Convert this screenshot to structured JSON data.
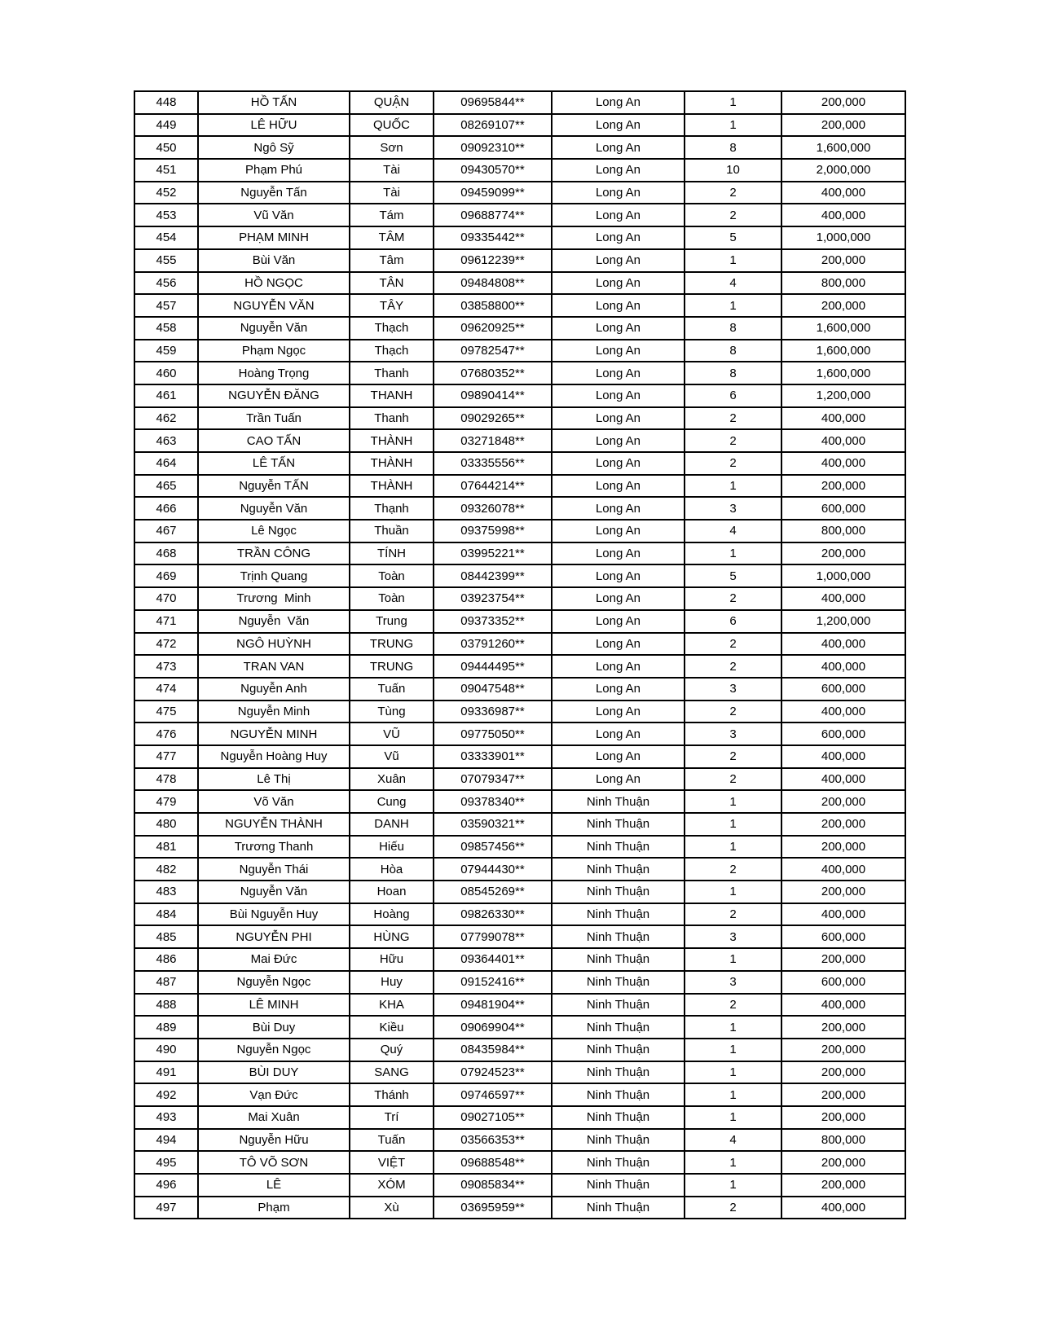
{
  "table": {
    "provinces_shown": [
      "Long An",
      "Ninh Thuận"
    ],
    "unit_amount": "200,000",
    "row_number_range": "448-497",
    "rows": [
      [
        "448",
        "HỒ TẤN",
        "QUẬN",
        "09695844**",
        "Long An",
        "1",
        "200,000"
      ],
      [
        "449",
        "LÊ HỮU",
        "QUỐC",
        "08269107**",
        "Long An",
        "1",
        "200,000"
      ],
      [
        "450",
        "Ngô Sỹ",
        "Sơn",
        "09092310**",
        "Long An",
        "8",
        "1,600,000"
      ],
      [
        "451",
        "Phạm Phú",
        "Tài",
        "09430570**",
        "Long An",
        "10",
        "2,000,000"
      ],
      [
        "452",
        "Nguyễn Tấn",
        "Tài",
        "09459099**",
        "Long An",
        "2",
        "400,000"
      ],
      [
        "453",
        "Vũ Văn",
        "Tám",
        "09688774**",
        "Long An",
        "2",
        "400,000"
      ],
      [
        "454",
        "PHẠM MINH",
        "TÂM",
        "09335442**",
        "Long An",
        "5",
        "1,000,000"
      ],
      [
        "455",
        "Bùi Văn",
        "Tâm",
        "09612239**",
        "Long An",
        "1",
        "200,000"
      ],
      [
        "456",
        "HỒ NGỌC",
        "TÂN",
        "09484808**",
        "Long An",
        "4",
        "800,000"
      ],
      [
        "457",
        "NGUYỄN VĂN",
        "TÂY",
        "03858800**",
        "Long An",
        "1",
        "200,000"
      ],
      [
        "458",
        "Nguyễn Văn",
        "Thạch",
        "09620925**",
        "Long An",
        "8",
        "1,600,000"
      ],
      [
        "459",
        "Phạm Ngọc",
        "Thạch",
        "09782547**",
        "Long An",
        "8",
        "1,600,000"
      ],
      [
        "460",
        "Hoàng Trọng",
        "Thanh",
        "07680352**",
        "Long An",
        "8",
        "1,600,000"
      ],
      [
        "461",
        "NGUYỄN ĐĂNG",
        "THANH",
        "09890414**",
        "Long An",
        "6",
        "1,200,000"
      ],
      [
        "462",
        "Trần Tuấn",
        "Thanh",
        "09029265**",
        "Long An",
        "2",
        "400,000"
      ],
      [
        "463",
        "CAO TẤN",
        "THÀNH",
        "03271848**",
        "Long An",
        "2",
        "400,000"
      ],
      [
        "464",
        "LÊ TẤN",
        "THÀNH",
        "03335556**",
        "Long An",
        "2",
        "400,000"
      ],
      [
        "465",
        "Nguyễn TẤN",
        "THÀNH",
        "07644214**",
        "Long An",
        "1",
        "200,000"
      ],
      [
        "466",
        "Nguyễn Văn",
        "Thạnh",
        "09326078**",
        "Long An",
        "3",
        "600,000"
      ],
      [
        "467",
        "Lê Ngọc",
        "Thuần",
        "09375998**",
        "Long An",
        "4",
        "800,000"
      ],
      [
        "468",
        "TRẦN CÔNG",
        "TÍNH",
        "03995221**",
        "Long An",
        "1",
        "200,000"
      ],
      [
        "469",
        "Trịnh Quang",
        "Toàn",
        "08442399**",
        "Long An",
        "5",
        "1,000,000"
      ],
      [
        "470",
        "Trương  Minh",
        "Toàn",
        "03923754**",
        "Long An",
        "2",
        "400,000"
      ],
      [
        "471",
        "Nguyễn  Văn",
        "Trung",
        "09373352**",
        "Long An",
        "6",
        "1,200,000"
      ],
      [
        "472",
        "NGÔ HUỲNH",
        "TRUNG",
        "03791260**",
        "Long An",
        "2",
        "400,000"
      ],
      [
        "473",
        "TRAN VAN",
        "TRUNG",
        "09444495**",
        "Long An",
        "2",
        "400,000"
      ],
      [
        "474",
        "Nguyễn Anh",
        "Tuấn",
        "09047548**",
        "Long An",
        "3",
        "600,000"
      ],
      [
        "475",
        "Nguyễn Minh",
        "Tùng",
        "09336987**",
        "Long An",
        "2",
        "400,000"
      ],
      [
        "476",
        "NGUYỄN MINH",
        "VŨ",
        "09775050**",
        "Long An",
        "3",
        "600,000"
      ],
      [
        "477",
        "Nguyễn Hoàng Huy",
        "Vũ",
        "03333901**",
        "Long An",
        "2",
        "400,000"
      ],
      [
        "478",
        "Lê Thị",
        "Xuân",
        "07079347**",
        "Long An",
        "2",
        "400,000"
      ],
      [
        "479",
        "Võ Văn",
        "Cung",
        "09378340**",
        "Ninh Thuận",
        "1",
        "200,000"
      ],
      [
        "480",
        "NGUYỄN THÀNH",
        "DANH",
        "03590321**",
        "Ninh Thuận",
        "1",
        "200,000"
      ],
      [
        "481",
        "Trương Thanh",
        "Hiếu",
        "09857456**",
        "Ninh Thuận",
        "1",
        "200,000"
      ],
      [
        "482",
        "Nguyễn Thái",
        "Hòa",
        "07944430**",
        "Ninh Thuận",
        "2",
        "400,000"
      ],
      [
        "483",
        "Nguyễn Văn",
        "Hoan",
        "08545269**",
        "Ninh Thuận",
        "1",
        "200,000"
      ],
      [
        "484",
        "Bùi Nguyễn Huy",
        "Hoàng",
        "09826330**",
        "Ninh Thuận",
        "2",
        "400,000"
      ],
      [
        "485",
        "NGUYỄN PHI",
        "HÙNG",
        "07799078**",
        "Ninh Thuận",
        "3",
        "600,000"
      ],
      [
        "486",
        "Mai Đức",
        "Hữu",
        "09364401**",
        "Ninh Thuận",
        "1",
        "200,000"
      ],
      [
        "487",
        "Nguyễn Ngọc",
        "Huy",
        "09152416**",
        "Ninh Thuận",
        "3",
        "600,000"
      ],
      [
        "488",
        "LÊ MINH",
        "KHA",
        "09481904**",
        "Ninh Thuận",
        "2",
        "400,000"
      ],
      [
        "489",
        "Bùi Duy",
        "Kiều",
        "09069904**",
        "Ninh Thuận",
        "1",
        "200,000"
      ],
      [
        "490",
        "Nguyễn Ngọc",
        "Quý",
        "08435984**",
        "Ninh Thuận",
        "1",
        "200,000"
      ],
      [
        "491",
        "BÙI DUY",
        "SANG",
        "07924523**",
        "Ninh Thuận",
        "1",
        "200,000"
      ],
      [
        "492",
        "Vạn Đức",
        "Thánh",
        "09746597**",
        "Ninh Thuận",
        "1",
        "200,000"
      ],
      [
        "493",
        "Mai Xuân",
        "Trí",
        "09027105**",
        "Ninh Thuận",
        "1",
        "200,000"
      ],
      [
        "494",
        "Nguyễn Hữu",
        "Tuấn",
        "03566353**",
        "Ninh Thuận",
        "4",
        "800,000"
      ],
      [
        "495",
        "TÔ VÕ SƠN",
        "VIỆT",
        "09688548**",
        "Ninh Thuận",
        "1",
        "200,000"
      ],
      [
        "496",
        "LÊ",
        "XÓM",
        "09085834**",
        "Ninh Thuận",
        "1",
        "200,000"
      ],
      [
        "497",
        "Phạm",
        "Xù",
        "03695959**",
        "Ninh Thuận",
        "2",
        "400,000"
      ]
    ]
  }
}
